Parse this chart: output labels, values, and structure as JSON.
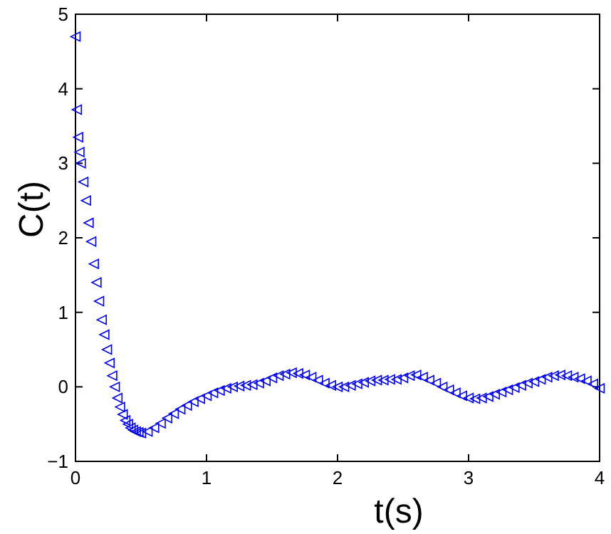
{
  "chart_data": {
    "type": "scatter",
    "xlabel": "t(s)",
    "ylabel": "C(t)",
    "marker": "triangle",
    "color": "#0000ff",
    "x": [
      0,
      0.01,
      0.02,
      0.03,
      0.04,
      0.06,
      0.08,
      0.1,
      0.12,
      0.14,
      0.16,
      0.18,
      0.2,
      0.22,
      0.24,
      0.26,
      0.28,
      0.3,
      0.32,
      0.34,
      0.36,
      0.38,
      0.4,
      0.42,
      0.44,
      0.46,
      0.48,
      0.5,
      0.55,
      0.6,
      0.65,
      0.7,
      0.75,
      0.8,
      0.85,
      0.9,
      0.95,
      1.0,
      1.05,
      1.1,
      1.15,
      1.2,
      1.25,
      1.3,
      1.35,
      1.4,
      1.45,
      1.5,
      1.55,
      1.6,
      1.65,
      1.7,
      1.75,
      1.8,
      1.85,
      1.9,
      1.95,
      2.0,
      2.05,
      2.1,
      2.15,
      2.2,
      2.25,
      2.3,
      2.35,
      2.4,
      2.45,
      2.5,
      2.55,
      2.6,
      2.65,
      2.7,
      2.75,
      2.8,
      2.85,
      2.9,
      2.95,
      3.0,
      3.05,
      3.1,
      3.15,
      3.2,
      3.25,
      3.3,
      3.35,
      3.4,
      3.45,
      3.5,
      3.55,
      3.6,
      3.65,
      3.7,
      3.75,
      3.8,
      3.85,
      3.9,
      3.95,
      4.0
    ],
    "values": [
      4.7,
      3.72,
      3.35,
      3.15,
      3.0,
      2.75,
      2.5,
      2.2,
      1.95,
      1.65,
      1.4,
      1.15,
      0.9,
      0.7,
      0.5,
      0.32,
      0.15,
      0.0,
      -0.15,
      -0.27,
      -0.37,
      -0.45,
      -0.5,
      -0.55,
      -0.58,
      -0.6,
      -0.61,
      -0.62,
      -0.6,
      -0.55,
      -0.49,
      -0.42,
      -0.36,
      -0.3,
      -0.25,
      -0.2,
      -0.16,
      -0.12,
      -0.08,
      -0.05,
      -0.02,
      0.0,
      0.01,
      0.02,
      0.03,
      0.05,
      0.08,
      0.12,
      0.15,
      0.17,
      0.19,
      0.18,
      0.16,
      0.13,
      0.09,
      0.05,
      0.02,
      0.0,
      0.0,
      0.02,
      0.04,
      0.06,
      0.08,
      0.09,
      0.09,
      0.1,
      0.1,
      0.12,
      0.15,
      0.16,
      0.13,
      0.09,
      0.05,
      0.0,
      -0.04,
      -0.08,
      -0.12,
      -0.15,
      -0.16,
      -0.15,
      -0.13,
      -0.1,
      -0.07,
      -0.04,
      -0.01,
      0.02,
      0.05,
      0.07,
      0.1,
      0.13,
      0.15,
      0.16,
      0.15,
      0.13,
      0.11,
      0.08,
      0.04,
      -0.02
    ],
    "xlim": [
      0,
      4
    ],
    "ylim": [
      -1,
      5
    ],
    "xticks": [
      0,
      1,
      2,
      3,
      4
    ],
    "yticks": [
      {
        "value": -1,
        "label": "−1"
      },
      0,
      1,
      2,
      3,
      4,
      5
    ]
  }
}
